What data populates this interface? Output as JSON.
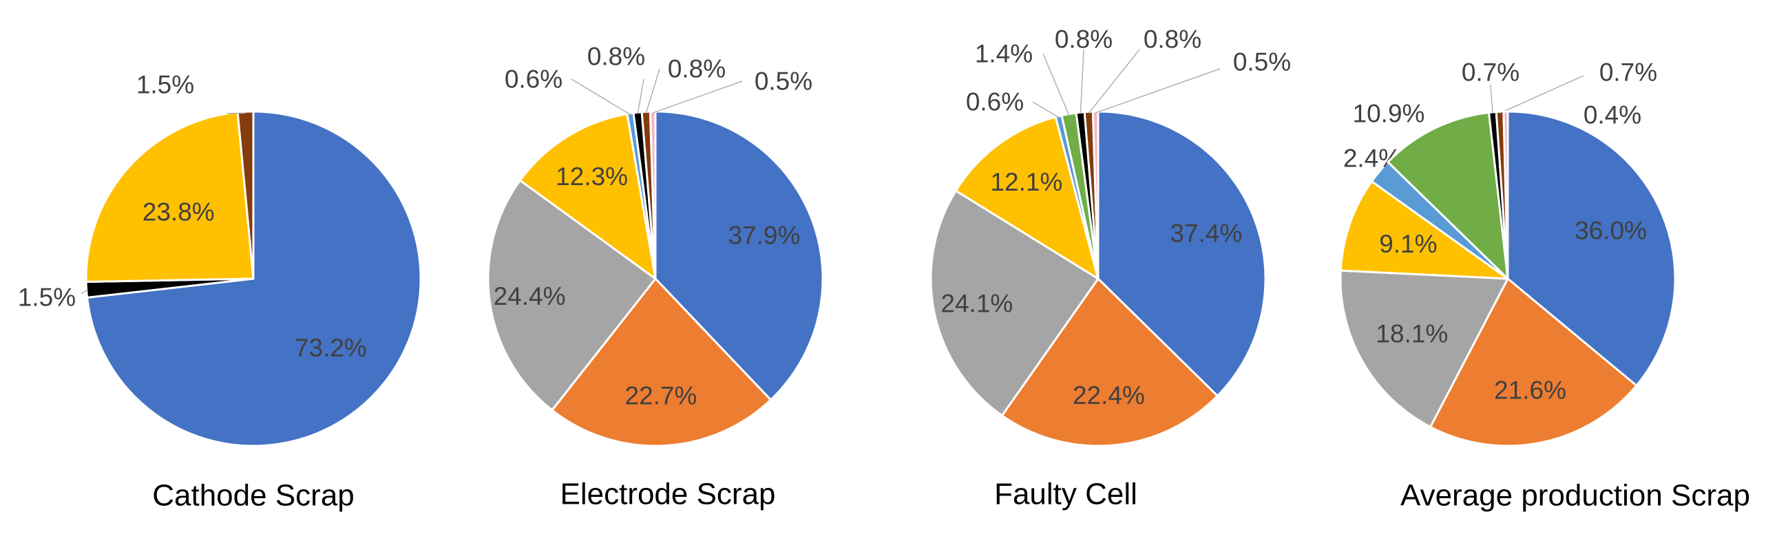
{
  "chart_data": [
    {
      "type": "pie",
      "title": "Cathode Scrap",
      "slices": [
        {
          "value": 73.2,
          "label": "73.2%",
          "color": "#4472C4"
        },
        {
          "value": 1.5,
          "label": "1.5%",
          "color": "#000000"
        },
        {
          "value": 23.8,
          "label": "23.8%",
          "color": "#FFC000"
        },
        {
          "value": 1.5,
          "label": "1.5%",
          "color": "#843C0C"
        }
      ]
    },
    {
      "type": "pie",
      "title": "Electrode Scrap",
      "slices": [
        {
          "value": 37.9,
          "label": "37.9%",
          "color": "#4472C4"
        },
        {
          "value": 22.7,
          "label": "22.7%",
          "color": "#ED7D31"
        },
        {
          "value": 24.4,
          "label": "24.4%",
          "color": "#A5A5A5"
        },
        {
          "value": 12.3,
          "label": "12.3%",
          "color": "#FFC000"
        },
        {
          "value": 0.6,
          "label": "0.6%",
          "color": "#5B9BD5"
        },
        {
          "value": 0.8,
          "label": "0.8%",
          "color": "#000000"
        },
        {
          "value": 0.8,
          "label": "0.8%",
          "color": "#843C0C"
        },
        {
          "value": 0.5,
          "label": "0.5%",
          "color": "#F4B6C2"
        }
      ]
    },
    {
      "type": "pie",
      "title": "Faulty Cell",
      "slices": [
        {
          "value": 37.4,
          "label": "37.4%",
          "color": "#4472C4"
        },
        {
          "value": 22.4,
          "label": "22.4%",
          "color": "#ED7D31"
        },
        {
          "value": 24.1,
          "label": "24.1%",
          "color": "#A5A5A5"
        },
        {
          "value": 12.1,
          "label": "12.1%",
          "color": "#FFC000"
        },
        {
          "value": 0.6,
          "label": "0.6%",
          "color": "#5B9BD5"
        },
        {
          "value": 1.4,
          "label": "1.4%",
          "color": "#70AD47"
        },
        {
          "value": 0.8,
          "label": "0.8%",
          "color": "#000000"
        },
        {
          "value": 0.8,
          "label": "0.8%",
          "color": "#843C0C"
        },
        {
          "value": 0.5,
          "label": "0.5%",
          "color": "#F4B6C2"
        }
      ]
    },
    {
      "type": "pie",
      "title": "Average production Scrap",
      "slices": [
        {
          "value": 36.0,
          "label": "36.0%",
          "color": "#4472C4"
        },
        {
          "value": 21.6,
          "label": "21.6%",
          "color": "#ED7D31"
        },
        {
          "value": 18.1,
          "label": "18.1%",
          "color": "#A5A5A5"
        },
        {
          "value": 9.1,
          "label": "9.1%",
          "color": "#FFC000"
        },
        {
          "value": 2.4,
          "label": "2.4%",
          "color": "#5B9BD5"
        },
        {
          "value": 10.9,
          "label": "10.9%",
          "color": "#70AD47"
        },
        {
          "value": 0.7,
          "label": "0.7%",
          "color": "#000000"
        },
        {
          "value": 0.7,
          "label": "0.7%",
          "color": "#843C0C"
        },
        {
          "value": 0.4,
          "label": "0.4%",
          "color": "#F4B6C2"
        }
      ]
    }
  ]
}
